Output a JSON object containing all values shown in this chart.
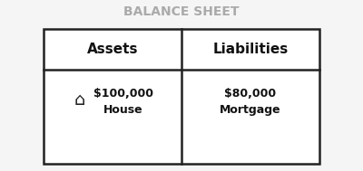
{
  "title": "BALANCE SHEET",
  "title_color": "#aaaaaa",
  "title_fontsize": 10,
  "col1_header": "Assets",
  "col2_header": "Liabilities",
  "col1_item_value": "$100,000",
  "col1_item_label": "House",
  "col2_item_value": "$80,000",
  "col2_item_label": "Mortgage",
  "header_fontsize": 11,
  "item_fontsize": 9,
  "background_color": "#f5f5f5",
  "box_facecolor": "#ffffff",
  "box_edgecolor": "#222222",
  "divider_color": "#222222"
}
